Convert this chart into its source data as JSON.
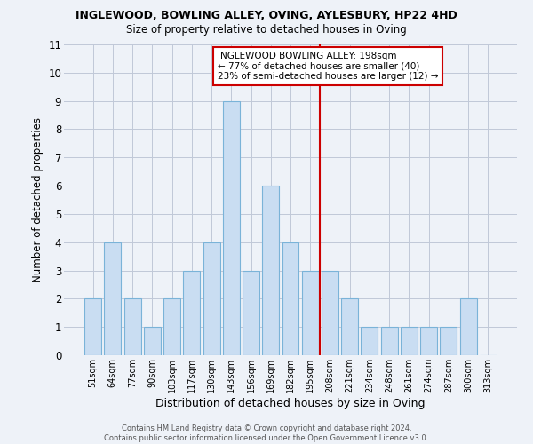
{
  "title": "INGLEWOOD, BOWLING ALLEY, OVING, AYLESBURY, HP22 4HD",
  "subtitle": "Size of property relative to detached houses in Oving",
  "xlabel": "Distribution of detached houses by size in Oving",
  "ylabel": "Number of detached properties",
  "footer_line1": "Contains HM Land Registry data © Crown copyright and database right 2024.",
  "footer_line2": "Contains public sector information licensed under the Open Government Licence v3.0.",
  "categories": [
    "51sqm",
    "64sqm",
    "77sqm",
    "90sqm",
    "103sqm",
    "117sqm",
    "130sqm",
    "143sqm",
    "156sqm",
    "169sqm",
    "182sqm",
    "195sqm",
    "208sqm",
    "221sqm",
    "234sqm",
    "248sqm",
    "261sqm",
    "274sqm",
    "287sqm",
    "300sqm",
    "313sqm"
  ],
  "values": [
    2,
    4,
    2,
    1,
    2,
    3,
    4,
    9,
    3,
    6,
    4,
    3,
    3,
    2,
    1,
    1,
    1,
    1,
    1,
    2,
    0
  ],
  "bar_color": "#c9ddf2",
  "bar_edge_color": "#7ab3d8",
  "grid_color": "#c0c8d8",
  "background_color": "#eef2f8",
  "vline_color": "#cc0000",
  "annotation_text": "INGLEWOOD BOWLING ALLEY: 198sqm\n← 77% of detached houses are smaller (40)\n23% of semi-detached houses are larger (12) →",
  "annotation_box_color": "#cc0000",
  "ylim": [
    0,
    11
  ],
  "yticks": [
    0,
    1,
    2,
    3,
    4,
    5,
    6,
    7,
    8,
    9,
    10,
    11
  ]
}
